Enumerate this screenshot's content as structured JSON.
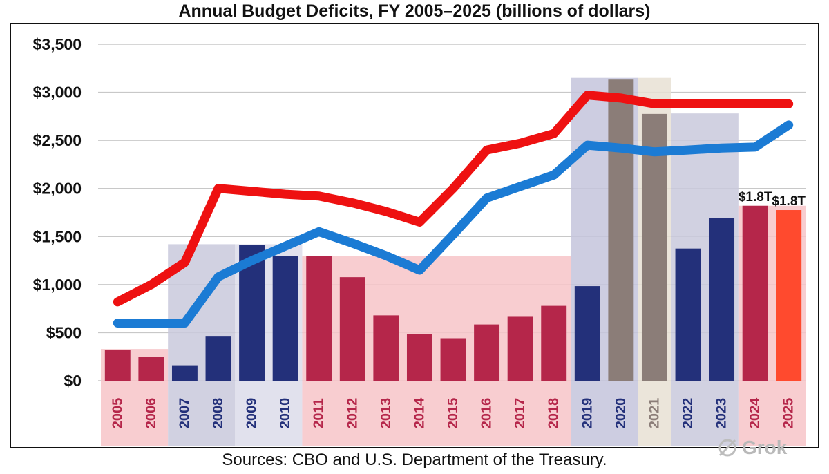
{
  "chart_data": {
    "type": "bar",
    "title": "Annual Budget Deficits, FY 2005–2025 (billions of dollars)",
    "xlabel": "",
    "ylabel": "",
    "ylim": [
      0,
      3500
    ],
    "yticks": [
      0,
      500,
      1000,
      1500,
      2000,
      2500,
      3000,
      3500
    ],
    "ytick_labels": [
      "$0",
      "$500",
      "$1,000",
      "$1,500",
      "$2,000",
      "$2,500",
      "$3,000",
      "$3,500"
    ],
    "grid": true,
    "categories": [
      "2005",
      "2006",
      "2007",
      "2008",
      "2009",
      "2010",
      "2011",
      "2012",
      "2013",
      "2014",
      "2015",
      "2016",
      "2017",
      "2018",
      "2019",
      "2020",
      "2021",
      "2022",
      "2023",
      "2024",
      "2025"
    ],
    "series": [
      {
        "name": "Deficit",
        "values": [
          318,
          248,
          161,
          459,
          1413,
          1294,
          1300,
          1077,
          680,
          485,
          442,
          585,
          665,
          779,
          984,
          3132,
          2775,
          1375,
          1695,
          1820,
          1775
        ],
        "bar_colors": [
          "#b5264a",
          "#b5264a",
          "#23307a",
          "#23307a",
          "#23307a",
          "#23307a",
          "#b5264a",
          "#b5264a",
          "#b5264a",
          "#b5264a",
          "#b5264a",
          "#b5264a",
          "#b5264a",
          "#b5264a",
          "#23307a",
          "#8b7d78",
          "#8b7d78",
          "#23307a",
          "#23307a",
          "#b5264a",
          "#ff4a2e"
        ]
      },
      {
        "name": "Red line",
        "type": "line",
        "color": "#ee1111",
        "values": [
          820,
          1000,
          1230,
          2000,
          1970,
          1940,
          1920,
          1850,
          1760,
          1650,
          2000,
          2400,
          2470,
          2570,
          2970,
          2940,
          2880,
          2880,
          2880,
          2880,
          2880
        ]
      },
      {
        "name": "Blue line",
        "type": "line",
        "color": "#1b7bd4",
        "values": [
          600,
          600,
          600,
          1080,
          1250,
          1400,
          1550,
          1430,
          1300,
          1150,
          1520,
          1900,
          2020,
          2140,
          2450,
          2420,
          2380,
          2400,
          2420,
          2430,
          2660
        ]
      }
    ],
    "shaded_regions": [
      {
        "from": "2005",
        "to": "2006",
        "top": 330,
        "color": "#f7c4c8"
      },
      {
        "from": "2007",
        "to": "2008",
        "top": 1420,
        "color": "#c9c9dc"
      },
      {
        "from": "2009",
        "to": "2010",
        "top": 1420,
        "color": "#dcdcea"
      },
      {
        "from": "2011",
        "to": "2018",
        "top": 1300,
        "color": "#f7c4c8"
      },
      {
        "from": "2019",
        "to": "2020",
        "top": 3150,
        "color": "#c4c4dc"
      },
      {
        "from": "2021",
        "to": "2021",
        "top": 3150,
        "color": "#e8e1d4"
      },
      {
        "from": "2022",
        "to": "2023",
        "top": 2780,
        "color": "#c9c9dc"
      },
      {
        "from": "2024",
        "to": "2025",
        "top": 1820,
        "color": "#f7c4c8"
      }
    ],
    "xtick_colors": [
      "#b5264a",
      "#b5264a",
      "#23307a",
      "#23307a",
      "#23307a",
      "#23307a",
      "#b5264a",
      "#b5264a",
      "#b5264a",
      "#b5264a",
      "#b5264a",
      "#b5264a",
      "#b5264a",
      "#b5264a",
      "#23307a",
      "#23307a",
      "#8b7d78",
      "#23307a",
      "#23307a",
      "#b5264a",
      "#b5264a"
    ],
    "data_labels": [
      {
        "category": "2024",
        "text": "$1.8T"
      },
      {
        "category": "2025",
        "text": "$1.8T"
      }
    ]
  },
  "footer": {
    "source": "Sources: CBO and U.S. Department of the Treasury.",
    "watermark": "Grok"
  }
}
